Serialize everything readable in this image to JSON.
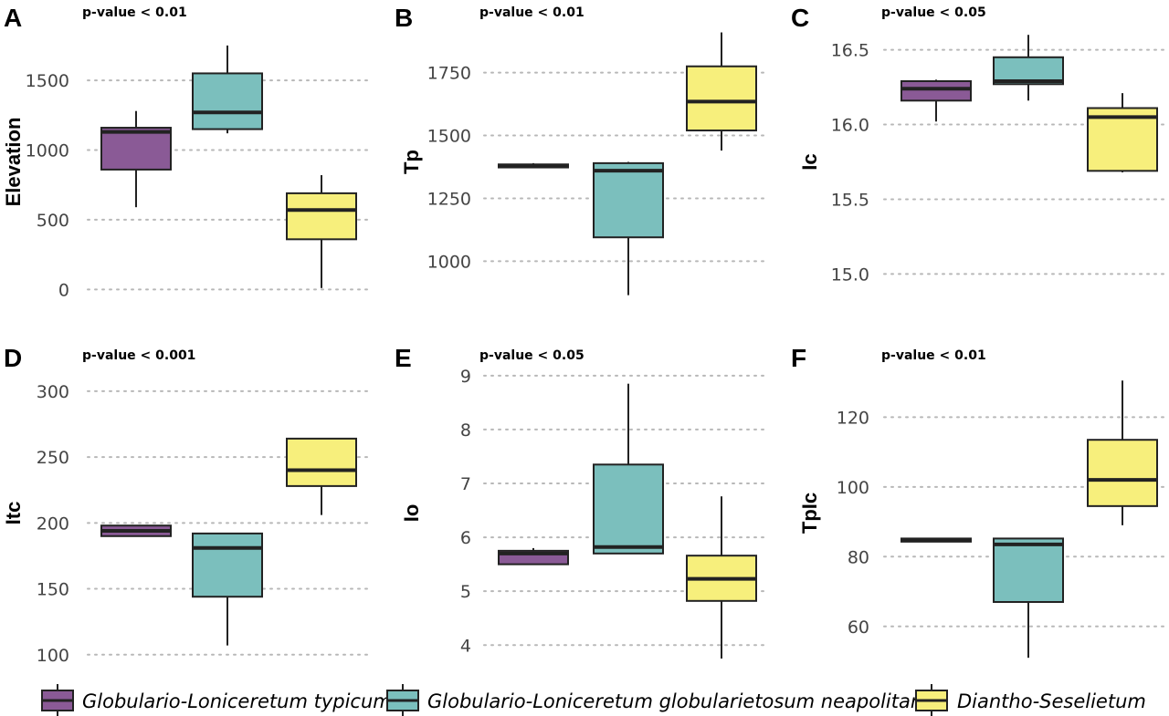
{
  "colors": {
    "typicum": "#8a5a96",
    "globularietosum": "#7bbfbd",
    "diantho": "#f7ef7c",
    "stroke": "#222222"
  },
  "legend": [
    {
      "label": "Globulario-Loniceretum typicum",
      "color_key": "typicum"
    },
    {
      "label": "Globulario-Loniceretum globularietosum neapolitanae",
      "color_key": "globularietosum"
    },
    {
      "label": "Diantho-Seselietum",
      "color_key": "diantho"
    }
  ],
  "chart_data": [
    {
      "id": "A",
      "type": "box",
      "letter": "A",
      "pvalue": "p-value < 0.01",
      "ylabel": "Elevation",
      "ylim": [
        -50,
        1880
      ],
      "yticks": [
        0,
        500,
        1000,
        1500
      ],
      "tick_labels": [
        "0",
        "500",
        "1000",
        "1500"
      ],
      "groups": [
        {
          "color_key": "typicum",
          "min": 590,
          "q1": 860,
          "median": 1130,
          "q3": 1160,
          "max": 1280
        },
        {
          "color_key": "globularietosum",
          "min": 1120,
          "q1": 1150,
          "median": 1270,
          "q3": 1550,
          "max": 1750
        },
        {
          "color_key": "diantho",
          "min": 10,
          "q1": 360,
          "median": 570,
          "q3": 690,
          "max": 820
        }
      ]
    },
    {
      "id": "B",
      "type": "box",
      "letter": "B",
      "pvalue": "p-value < 0.01",
      "ylabel": "Tp",
      "ylim": [
        860,
        1930
      ],
      "yticks": [
        1000,
        1250,
        1500,
        1750
      ],
      "tick_labels": [
        "1000",
        "1250",
        "1500",
        "1750"
      ],
      "groups": [
        {
          "color_key": "typicum",
          "min": 1370,
          "q1": 1373,
          "median": 1378,
          "q3": 1385,
          "max": 1390
        },
        {
          "color_key": "globularietosum",
          "min": 865,
          "q1": 1095,
          "median": 1360,
          "q3": 1390,
          "max": 1395
        },
        {
          "color_key": "diantho",
          "min": 1440,
          "q1": 1520,
          "median": 1635,
          "q3": 1775,
          "max": 1910
        }
      ]
    },
    {
      "id": "C",
      "type": "box",
      "letter": "C",
      "pvalue": "p-value < 0.05",
      "ylabel": "Ic",
      "ylim": [
        14.85,
        16.65
      ],
      "yticks": [
        15.0,
        15.5,
        16.0,
        16.5
      ],
      "tick_labels": [
        "15.0",
        "15.5",
        "16.0",
        "16.5"
      ],
      "groups": [
        {
          "color_key": "typicum",
          "min": 16.02,
          "q1": 16.16,
          "median": 16.24,
          "q3": 16.29,
          "max": 16.3
        },
        {
          "color_key": "globularietosum",
          "min": 16.16,
          "q1": 16.27,
          "median": 16.29,
          "q3": 16.45,
          "max": 16.6
        },
        {
          "color_key": "diantho",
          "min": 15.68,
          "q1": 15.69,
          "median": 16.05,
          "q3": 16.11,
          "max": 16.21
        }
      ]
    },
    {
      "id": "D",
      "type": "box",
      "letter": "D",
      "pvalue": "p-value < 0.001",
      "ylabel": "Itc",
      "ylim": [
        95,
        320
      ],
      "yticks": [
        100,
        150,
        200,
        250,
        300
      ],
      "tick_labels": [
        "100",
        "150",
        "200",
        "250",
        "300"
      ],
      "groups": [
        {
          "color_key": "typicum",
          "min": 190,
          "q1": 190,
          "median": 194,
          "q3": 198,
          "max": 198
        },
        {
          "color_key": "globularietosum",
          "min": 107,
          "q1": 144,
          "median": 181,
          "q3": 192,
          "max": 192
        },
        {
          "color_key": "diantho",
          "min": 206,
          "q1": 228,
          "median": 240,
          "q3": 264,
          "max": 264
        }
      ]
    },
    {
      "id": "E",
      "type": "box",
      "letter": "E",
      "pvalue": "p-value < 0.05",
      "ylabel": "Io",
      "ylim": [
        3.7,
        9.2
      ],
      "yticks": [
        4,
        5,
        6,
        7,
        8,
        9
      ],
      "tick_labels": [
        "4",
        "5",
        "6",
        "7",
        "8",
        "9"
      ],
      "groups": [
        {
          "color_key": "typicum",
          "min": 5.5,
          "q1": 5.5,
          "median": 5.7,
          "q3": 5.75,
          "max": 5.8
        },
        {
          "color_key": "globularietosum",
          "min": 5.7,
          "q1": 5.7,
          "median": 5.82,
          "q3": 7.35,
          "max": 8.85
        },
        {
          "color_key": "diantho",
          "min": 3.75,
          "q1": 4.82,
          "median": 5.23,
          "q3": 5.66,
          "max": 6.76
        }
      ]
    },
    {
      "id": "F",
      "type": "box",
      "letter": "F",
      "pvalue": "p-value < 0.01",
      "ylabel": "TpIc",
      "ylim": [
        50,
        135
      ],
      "yticks": [
        60,
        80,
        100,
        120
      ],
      "tick_labels": [
        "60",
        "80",
        "100",
        "120"
      ],
      "groups": [
        {
          "color_key": "typicum",
          "min": 84.3,
          "q1": 84.3,
          "median": 84.8,
          "q3": 85.2,
          "max": 85.2
        },
        {
          "color_key": "globularietosum",
          "min": 51,
          "q1": 67,
          "median": 83.5,
          "q3": 85.2,
          "max": 85.2
        },
        {
          "color_key": "diantho",
          "min": 89,
          "q1": 94.5,
          "median": 102,
          "q3": 113.5,
          "max": 130.5
        }
      ]
    }
  ]
}
